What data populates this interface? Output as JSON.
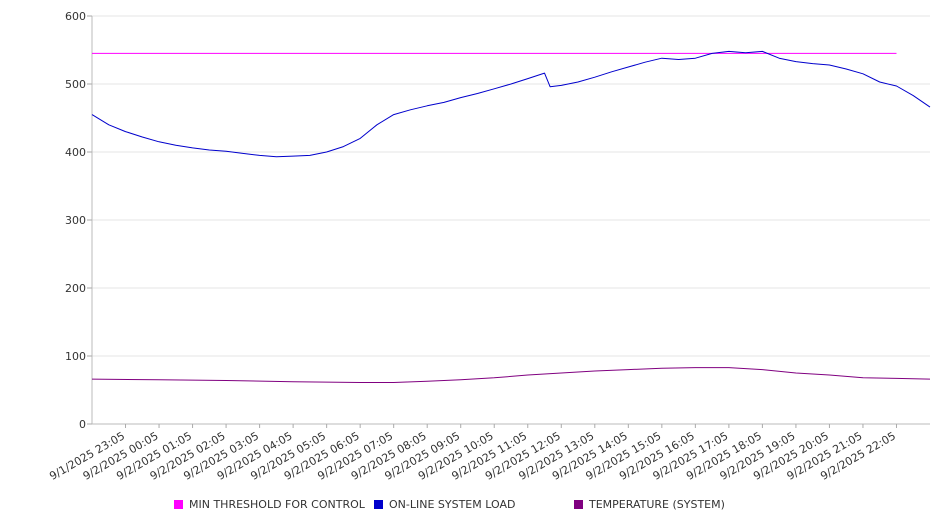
{
  "chart_data": {
    "type": "line",
    "title": "",
    "xlabel": "",
    "ylabel": "",
    "ylim": [
      0,
      600
    ],
    "y_ticks": [
      0,
      100,
      200,
      300,
      400,
      500,
      600
    ],
    "x_tick_labels": [
      "9/1/2025 23:05",
      "9/2/2025 00:05",
      "9/2/2025 01:05",
      "9/2/2025 02:05",
      "9/2/2025 03:05",
      "9/2/2025 04:05",
      "9/2/2025 05:05",
      "9/2/2025 06:05",
      "9/2/2025 07:05",
      "9/2/2025 08:05",
      "9/2/2025 09:05",
      "9/2/2025 10:05",
      "9/2/2025 11:05",
      "9/2/2025 12:05",
      "9/2/2025 13:05",
      "9/2/2025 14:05",
      "9/2/2025 15:05",
      "9/2/2025 16:05",
      "9/2/2025 17:05",
      "9/2/2025 18:05",
      "9/2/2025 19:05",
      "9/2/2025 20:05",
      "9/2/2025 21:05",
      "9/2/2025 22:05"
    ],
    "x_start": "9/1/2025 22:05",
    "x_end": "9/2/2025 22:05",
    "grid": true,
    "legend_position": "bottom",
    "series": [
      {
        "name": "MIN THRESHOLD FOR CONTROL",
        "color": "#ff00ff",
        "points": [
          [
            "9/1/2025 22:05",
            545
          ],
          [
            "9/2/2025 22:05",
            545
          ]
        ]
      },
      {
        "name": "ON-LINE SYSTEM LOAD",
        "color": "#0000cc",
        "points": [
          [
            "9/1/2025 22:05",
            455
          ],
          [
            "9/1/2025 22:35",
            440
          ],
          [
            "9/1/2025 23:05",
            430
          ],
          [
            "9/1/2025 23:35",
            422
          ],
          [
            "9/2/2025 00:05",
            415
          ],
          [
            "9/2/2025 00:35",
            410
          ],
          [
            "9/2/2025 01:05",
            406
          ],
          [
            "9/2/2025 01:35",
            403
          ],
          [
            "9/2/2025 02:05",
            401
          ],
          [
            "9/2/2025 02:35",
            398
          ],
          [
            "9/2/2025 03:05",
            395
          ],
          [
            "9/2/2025 03:35",
            393
          ],
          [
            "9/2/2025 04:05",
            394
          ],
          [
            "9/2/2025 04:35",
            395
          ],
          [
            "9/2/2025 05:05",
            400
          ],
          [
            "9/2/2025 05:35",
            408
          ],
          [
            "9/2/2025 06:05",
            420
          ],
          [
            "9/2/2025 06:35",
            440
          ],
          [
            "9/2/2025 07:05",
            455
          ],
          [
            "9/2/2025 07:35",
            462
          ],
          [
            "9/2/2025 08:05",
            468
          ],
          [
            "9/2/2025 08:35",
            473
          ],
          [
            "9/2/2025 09:05",
            480
          ],
          [
            "9/2/2025 09:35",
            486
          ],
          [
            "9/2/2025 10:05",
            493
          ],
          [
            "9/2/2025 10:35",
            500
          ],
          [
            "9/2/2025 11:05",
            508
          ],
          [
            "9/2/2025 11:35",
            516
          ],
          [
            "9/2/2025 11:45",
            496
          ],
          [
            "9/2/2025 12:05",
            498
          ],
          [
            "9/2/2025 12:35",
            503
          ],
          [
            "9/2/2025 13:05",
            510
          ],
          [
            "9/2/2025 13:35",
            518
          ],
          [
            "9/2/2025 14:05",
            525
          ],
          [
            "9/2/2025 14:35",
            532
          ],
          [
            "9/2/2025 15:05",
            538
          ],
          [
            "9/2/2025 15:35",
            536
          ],
          [
            "9/2/2025 16:05",
            538
          ],
          [
            "9/2/2025 16:35",
            545
          ],
          [
            "9/2/2025 17:05",
            548
          ],
          [
            "9/2/2025 17:35",
            546
          ],
          [
            "9/2/2025 18:05",
            548
          ],
          [
            "9/2/2025 18:35",
            538
          ],
          [
            "9/2/2025 19:05",
            533
          ],
          [
            "9/2/2025 19:35",
            530
          ],
          [
            "9/2/2025 20:05",
            528
          ],
          [
            "9/2/2025 20:35",
            522
          ],
          [
            "9/2/2025 21:05",
            515
          ],
          [
            "9/2/2025 21:35",
            503
          ],
          [
            "9/2/2025 22:05",
            497
          ],
          [
            "9/2/2025 22:35",
            483
          ],
          [
            "9/2/2025 23:05",
            466
          ]
        ]
      },
      {
        "name": "TEMPERATURE (SYSTEM)",
        "color": "#800080",
        "points": [
          [
            "9/1/2025 22:05",
            66
          ],
          [
            "9/2/2025 00:05",
            65
          ],
          [
            "9/2/2025 02:05",
            64
          ],
          [
            "9/2/2025 04:05",
            62
          ],
          [
            "9/2/2025 06:05",
            61
          ],
          [
            "9/2/2025 07:05",
            61
          ],
          [
            "9/2/2025 08:05",
            63
          ],
          [
            "9/2/2025 09:05",
            65
          ],
          [
            "9/2/2025 10:05",
            68
          ],
          [
            "9/2/2025 11:05",
            72
          ],
          [
            "9/2/2025 12:05",
            75
          ],
          [
            "9/2/2025 13:05",
            78
          ],
          [
            "9/2/2025 14:05",
            80
          ],
          [
            "9/2/2025 15:05",
            82
          ],
          [
            "9/2/2025 16:05",
            83
          ],
          [
            "9/2/2025 17:05",
            83
          ],
          [
            "9/2/2025 18:05",
            80
          ],
          [
            "9/2/2025 19:05",
            75
          ],
          [
            "9/2/2025 20:05",
            72
          ],
          [
            "9/2/2025 21:05",
            68
          ],
          [
            "9/2/2025 22:05",
            67
          ],
          [
            "9/2/2025 23:05",
            66
          ]
        ]
      }
    ]
  }
}
